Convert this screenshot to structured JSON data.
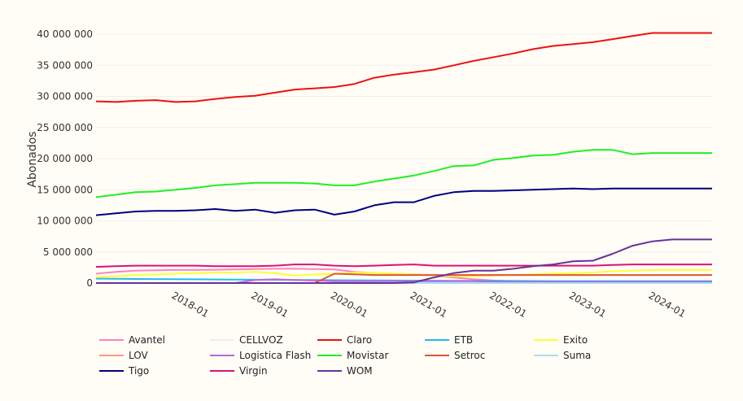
{
  "chart_data": {
    "type": "line",
    "title": "",
    "xlabel": "",
    "ylabel": "Abonados",
    "ylim": [
      0,
      40000000
    ],
    "y_ticks": [
      0,
      5000000,
      10000000,
      15000000,
      20000000,
      25000000,
      30000000,
      35000000,
      40000000
    ],
    "y_tick_labels": [
      "0",
      "5 000 000",
      "10 000 000",
      "15 000 000",
      "20 000 000",
      "25 000 000",
      "30 000 000",
      "35 000 000",
      "40 000 000"
    ],
    "x": [
      "2017-Q1",
      "2017-Q2",
      "2017-Q3",
      "2017-Q4",
      "2018-Q1",
      "2018-Q2",
      "2018-Q3",
      "2018-Q4",
      "2019-Q1",
      "2019-Q2",
      "2019-Q3",
      "2019-Q4",
      "2020-Q1",
      "2020-Q2",
      "2020-Q3",
      "2020-Q4",
      "2021-Q1",
      "2021-Q2",
      "2021-Q3",
      "2021-Q4",
      "2022-Q1",
      "2022-Q2",
      "2022-Q3",
      "2022-Q4",
      "2023-Q1",
      "2023-Q2",
      "2023-Q3",
      "2023-Q4",
      "2024-Q1",
      "2024-Q2",
      "2024-Q3",
      "2024-Q4"
    ],
    "x_ticks": [
      "2018-Q1",
      "2019-Q1",
      "2020-Q1",
      "2021-Q1",
      "2022-Q1",
      "2023-Q1",
      "2024-Q1"
    ],
    "x_tick_labels": [
      "2018-01",
      "2019-01",
      "2020-01",
      "2021-01",
      "2022-01",
      "2023-01",
      "2024-01"
    ],
    "grid": true,
    "legend_position": "bottom",
    "series": [
      {
        "name": "Avantel",
        "color": "#ff80c0",
        "values": [
          1500000,
          1800000,
          2000000,
          2050000,
          2100000,
          2100000,
          2150000,
          2200000,
          2250000,
          2300000,
          2300000,
          2250000,
          2200000,
          1800000,
          1600000,
          1500000,
          1400000,
          1200000,
          900000,
          600000,
          400000,
          300000,
          200000,
          150000,
          100000,
          80000,
          60000,
          50000,
          40000,
          30000,
          30000,
          30000
        ]
      },
      {
        "name": "CELLVOZ",
        "color": "#eeeeee",
        "values": [
          50000,
          50000,
          50000,
          50000,
          50000,
          50000,
          50000,
          50000,
          50000,
          50000,
          50000,
          50000,
          50000,
          50000,
          50000,
          50000,
          50000,
          50000,
          50000,
          50000,
          50000,
          50000,
          50000,
          50000,
          50000,
          50000,
          50000,
          50000,
          50000,
          50000,
          50000,
          50000
        ]
      },
      {
        "name": "Claro",
        "color": "#ee1111",
        "values": [
          29200000,
          29100000,
          29300000,
          29400000,
          29100000,
          29200000,
          29600000,
          29900000,
          30100000,
          30600000,
          31100000,
          31300000,
          31500000,
          32000000,
          33000000,
          33500000,
          33900000,
          34300000,
          35000000,
          35700000,
          36300000,
          36900000,
          37600000,
          38100000,
          38400000,
          38700000,
          39200000,
          39700000,
          40200000,
          40200000,
          40200000,
          40200000
        ]
      },
      {
        "name": "ETB",
        "color": "#22bbee",
        "values": [
          700000,
          680000,
          660000,
          640000,
          620000,
          600000,
          580000,
          560000,
          540000,
          520000,
          500000,
          480000,
          460000,
          440000,
          420000,
          400000,
          390000,
          380000,
          370000,
          360000,
          350000,
          340000,
          330000,
          320000,
          320000,
          320000,
          320000,
          320000,
          320000,
          320000,
          320000,
          320000
        ]
      },
      {
        "name": "Exito",
        "color": "#ffff33",
        "values": [
          1000000,
          1100000,
          1300000,
          1400000,
          1500000,
          1600000,
          1700000,
          1700000,
          1800000,
          1600000,
          1200000,
          1400000,
          1500000,
          1700000,
          1600000,
          1500000,
          1400000,
          1200000,
          1100000,
          1100000,
          1200000,
          1300000,
          1400000,
          1500000,
          1600000,
          1700000,
          1900000,
          2000000,
          2100000,
          2100000,
          2100000,
          2100000
        ]
      },
      {
        "name": "LOV",
        "color": "#ff9977",
        "values": [
          0,
          0,
          0,
          0,
          0,
          0,
          0,
          0,
          0,
          0,
          0,
          0,
          0,
          0,
          0,
          0,
          0,
          0,
          0,
          0,
          0,
          0,
          0,
          0,
          0,
          0,
          0,
          0,
          0,
          0,
          0,
          0
        ]
      },
      {
        "name": "Logistica Flash",
        "color": "#bb66dd",
        "values": [
          0,
          0,
          0,
          0,
          0,
          0,
          0,
          0,
          500000,
          600000,
          500000,
          400000,
          300000,
          300000,
          300000,
          300000,
          300000,
          300000,
          300000,
          300000,
          200000,
          200000,
          200000,
          200000,
          200000,
          200000,
          200000,
          200000,
          200000,
          200000,
          200000,
          200000
        ]
      },
      {
        "name": "Movistar",
        "color": "#22ee22",
        "values": [
          13800000,
          14200000,
          14600000,
          14700000,
          15000000,
          15300000,
          15700000,
          15900000,
          16100000,
          16100000,
          16100000,
          16000000,
          15700000,
          15700000,
          16300000,
          16800000,
          17300000,
          18000000,
          18800000,
          18900000,
          19800000,
          20100000,
          20500000,
          20600000,
          21100000,
          21400000,
          21400000,
          20700000,
          20900000,
          20900000,
          20900000,
          20900000
        ]
      },
      {
        "name": "Setroc",
        "color": "#dd5533",
        "values": [
          0,
          0,
          0,
          0,
          0,
          0,
          0,
          0,
          0,
          0,
          0,
          0,
          1500000,
          1400000,
          1300000,
          1300000,
          1300000,
          1300000,
          1300000,
          1300000,
          1300000,
          1300000,
          1300000,
          1300000,
          1300000,
          1300000,
          1300000,
          1300000,
          1300000,
          1300000,
          1300000,
          1300000
        ]
      },
      {
        "name": "Suma",
        "color": "#aaddee",
        "values": [
          0,
          0,
          0,
          0,
          0,
          0,
          0,
          0,
          0,
          0,
          0,
          0,
          0,
          0,
          0,
          0,
          0,
          0,
          0,
          0,
          0,
          0,
          0,
          0,
          0,
          0,
          0,
          0,
          0,
          0,
          0,
          0
        ]
      },
      {
        "name": "Tigo",
        "color": "#000080",
        "values": [
          10900000,
          11200000,
          11500000,
          11600000,
          11600000,
          11700000,
          11900000,
          11600000,
          11800000,
          11300000,
          11700000,
          11800000,
          11000000,
          11500000,
          12500000,
          13000000,
          13000000,
          14000000,
          14600000,
          14800000,
          14800000,
          14900000,
          15000000,
          15100000,
          15200000,
          15100000,
          15200000,
          15200000,
          15200000,
          15200000,
          15200000,
          15200000
        ]
      },
      {
        "name": "Virgin",
        "color": "#dd1177",
        "values": [
          2600000,
          2700000,
          2800000,
          2800000,
          2800000,
          2800000,
          2700000,
          2700000,
          2700000,
          2800000,
          3000000,
          3000000,
          2800000,
          2700000,
          2800000,
          2900000,
          3000000,
          2800000,
          2800000,
          2800000,
          2800000,
          2800000,
          2800000,
          2800000,
          2800000,
          2800000,
          2900000,
          3000000,
          3000000,
          3000000,
          3000000,
          3000000
        ]
      },
      {
        "name": "WOM",
        "color": "#663399",
        "values": [
          0,
          0,
          0,
          0,
          0,
          0,
          0,
          0,
          0,
          0,
          0,
          0,
          0,
          0,
          0,
          0,
          100000,
          900000,
          1600000,
          2000000,
          2000000,
          2300000,
          2700000,
          3000000,
          3500000,
          3600000,
          4700000,
          6000000,
          6700000,
          7000000,
          7000000,
          7000000
        ]
      }
    ]
  }
}
